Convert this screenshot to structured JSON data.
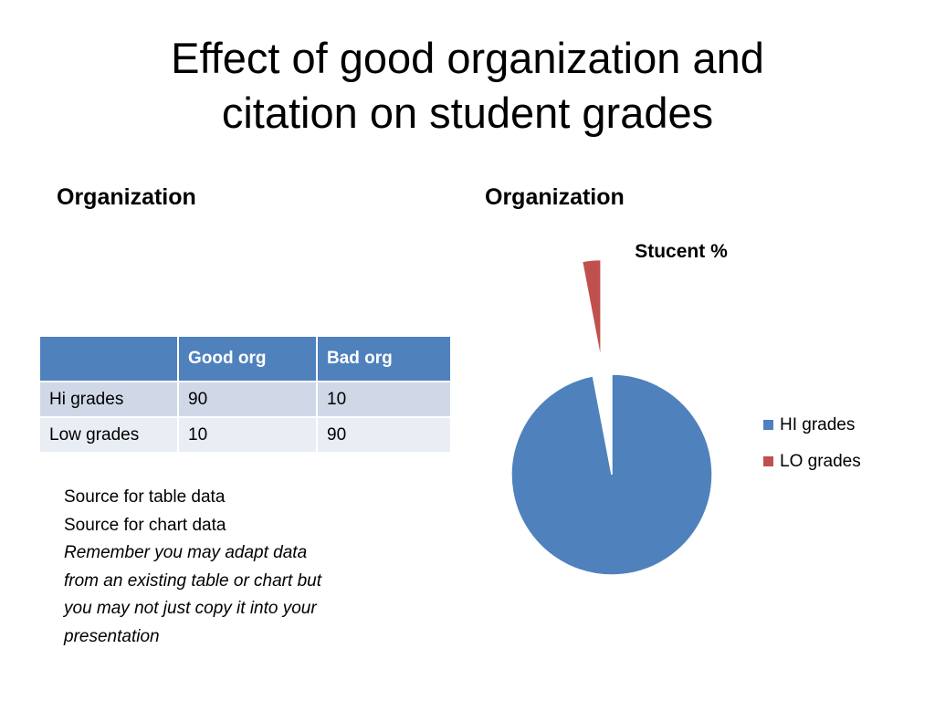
{
  "title": {
    "line1": "Effect of good organization and",
    "line2": "citation on student grades"
  },
  "left_heading": "Organization",
  "right_heading": "Organization",
  "table": {
    "headers": [
      "",
      "Good org",
      "Bad org"
    ],
    "rows": [
      [
        "Hi grades",
        "90",
        "10"
      ],
      [
        "Low grades",
        "10",
        "90"
      ]
    ],
    "header_color": "#4f81bd",
    "row_colors": [
      "#d0d8e8",
      "#e9edf4"
    ]
  },
  "notes": {
    "source_table": "Source for table data",
    "source_chart": "Source for chart data",
    "reminder": "Remember you may adapt data from an existing table or chart but you may not just copy it into your presentation"
  },
  "chart_data": {
    "type": "pie",
    "title": "Stucent %",
    "categories": [
      "HI grades",
      "LO grades"
    ],
    "values": [
      97,
      3
    ],
    "colors": [
      "#4f81bd",
      "#c0504d"
    ],
    "exploded": [
      false,
      true
    ],
    "legend": "right"
  }
}
